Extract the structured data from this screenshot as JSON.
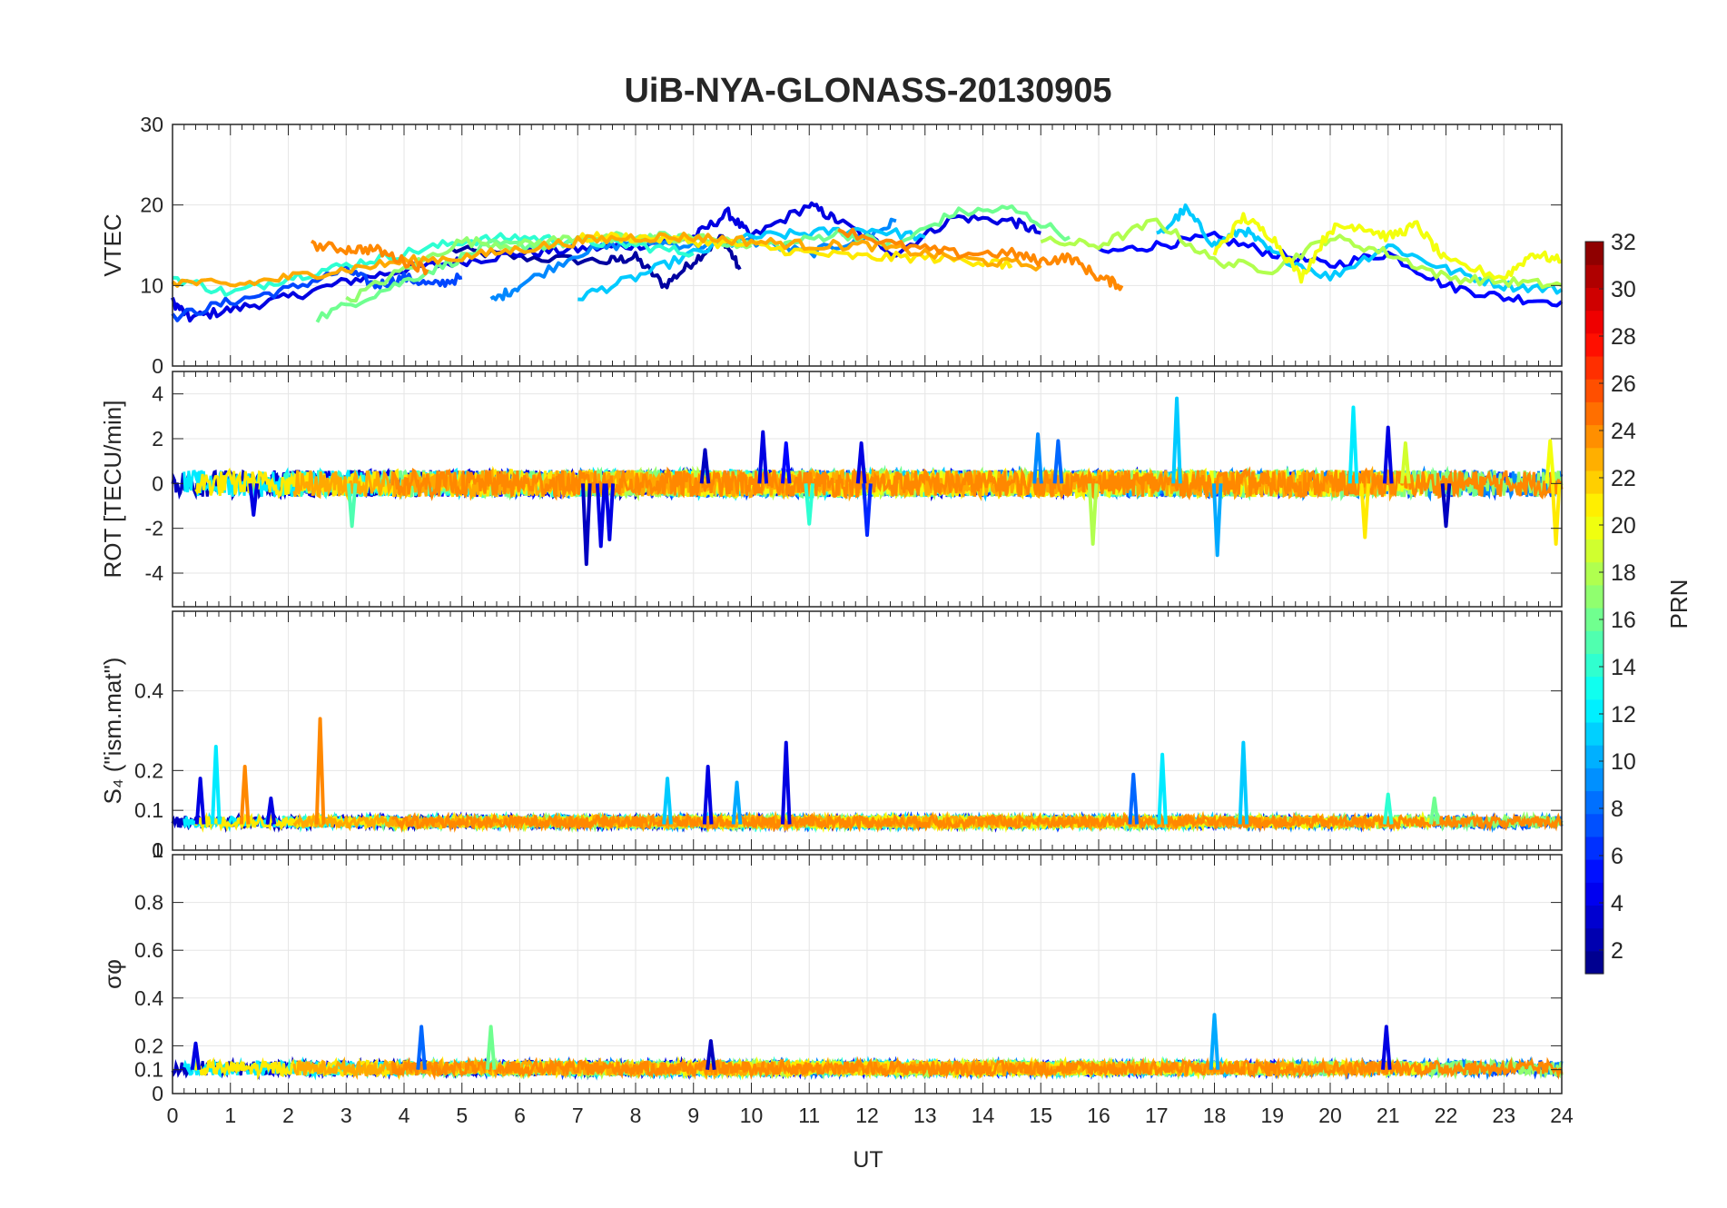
{
  "chart_data": {
    "type": "line",
    "title": "UiB-NYA-GLONASS-20130905",
    "xlabel": "UT",
    "x_range": [
      0,
      24
    ],
    "x_ticks": [
      0,
      1,
      2,
      3,
      4,
      5,
      6,
      7,
      8,
      9,
      10,
      11,
      12,
      13,
      14,
      15,
      16,
      17,
      18,
      19,
      20,
      21,
      22,
      23,
      24
    ],
    "grid": true,
    "colorbar": {
      "label": "PRN",
      "colormap": "jet",
      "range": [
        1,
        32
      ],
      "ticks": [
        2,
        4,
        6,
        8,
        10,
        12,
        14,
        16,
        18,
        20,
        22,
        24,
        26,
        28,
        30,
        32
      ]
    },
    "panels": [
      {
        "id": "vtec",
        "ylabel": "VTEC",
        "ylim": [
          0,
          30
        ],
        "yticks": [
          0,
          10,
          20,
          30
        ],
        "series": [
          {
            "prn": 2,
            "x": [
              4.8,
              6.0,
              7.5,
              8.0,
              8.5,
              9.0,
              9.5,
              9.8
            ],
            "y": [
              14.5,
              13.5,
              13.0,
              13.5,
              10.0,
              13.0,
              16.0,
              12.0
            ]
          },
          {
            "prn": 4,
            "x": [
              0.0,
              0.3,
              1.0,
              2.0,
              3.0,
              4.0,
              5.0,
              6.0,
              7.0,
              8.0,
              9.0,
              9.6,
              10.0,
              11.0,
              11.5,
              12.5,
              13.5,
              14.5,
              15.0
            ],
            "y": [
              8.0,
              6.0,
              7.0,
              8.5,
              10.5,
              12.0,
              13.0,
              14.0,
              14.5,
              15.0,
              16.0,
              19.0,
              16.0,
              20.0,
              18.0,
              14.0,
              18.5,
              18.0,
              16.5
            ]
          },
          {
            "prn": 5,
            "x": [
              16.0,
              17.0,
              18.0,
              19.0,
              20.0,
              21.0,
              22.0,
              23.0,
              24.0
            ],
            "y": [
              14.0,
              15.0,
              16.0,
              14.0,
              12.5,
              14.0,
              10.0,
              8.5,
              8.0
            ]
          },
          {
            "prn": 7,
            "x": [
              0.0,
              1.0,
              2.0,
              3.0,
              3.5,
              4.0,
              4.5,
              5.0
            ],
            "y": [
              6.0,
              8.0,
              9.5,
              12.0,
              10.0,
              11.0,
              10.0,
              11.0
            ]
          },
          {
            "prn": 9,
            "x": [
              5.5,
              6.0,
              7.0,
              8.0,
              9.0,
              10.0,
              11.0,
              12.0,
              12.5
            ],
            "y": [
              8.0,
              10.0,
              14.0,
              15.5,
              15.0,
              15.5,
              14.0,
              16.0,
              18.0
            ]
          },
          {
            "prn": 11,
            "x": [
              7.0,
              8.0,
              9.0,
              10.0,
              11.0,
              12.0,
              13.0
            ],
            "y": [
              8.5,
              11.0,
              14.0,
              16.0,
              16.5,
              17.0,
              16.0
            ]
          },
          {
            "prn": 11,
            "x": [
              17.0,
              17.5,
              18.0,
              18.5,
              19.0,
              20.0,
              21.0,
              22.0,
              23.0,
              24.0
            ],
            "y": [
              16.0,
              19.5,
              15.0,
              17.0,
              14.0,
              11.0,
              15.0,
              12.0,
              10.0,
              9.5
            ]
          },
          {
            "prn": 14,
            "x": [
              0.0,
              1.0,
              2.0,
              3.0,
              4.0,
              5.0,
              6.0,
              7.0,
              8.0,
              9.0
            ],
            "y": [
              11.0,
              9.0,
              11.0,
              12.5,
              14.0,
              15.5,
              16.0,
              15.5,
              15.0,
              14.0
            ]
          },
          {
            "prn": 16,
            "x": [
              2.5,
              3.5,
              4.5,
              5.5,
              6.5,
              7.5,
              8.5,
              9.5,
              10.5,
              11.5,
              12.5,
              13.5,
              14.5,
              15.5
            ],
            "y": [
              6.0,
              9.0,
              12.0,
              15.0,
              15.0,
              16.0,
              16.0,
              15.5,
              15.0,
              16.5,
              15.0,
              19.0,
              19.5,
              16.0
            ]
          },
          {
            "prn": 17,
            "x": [
              3.0,
              4.0,
              5.0,
              6.0,
              7.0,
              8.0,
              9.0,
              10.0
            ],
            "y": [
              8.0,
              12.0,
              15.5,
              15.0,
              16.0,
              15.5,
              16.0,
              15.0
            ]
          },
          {
            "prn": 18,
            "x": [
              15.0,
              16.0,
              17.0,
              18.0,
              19.0,
              20.0,
              21.0,
              22.0,
              23.0,
              24.0
            ],
            "y": [
              15.5,
              15.0,
              18.0,
              13.0,
              12.0,
              16.0,
              14.0,
              11.0,
              10.5,
              10.0
            ]
          },
          {
            "prn": 20,
            "x": [
              18.0,
              18.5,
              19.0,
              19.5,
              20.0,
              20.5,
              21.0,
              21.5,
              22.0,
              23.0,
              23.5,
              24.0
            ],
            "y": [
              14.0,
              18.5,
              16.0,
              11.0,
              17.0,
              17.5,
              16.0,
              17.5,
              13.0,
              11.0,
              14.0,
              13.0
            ]
          },
          {
            "prn": 21,
            "x": [
              7.0,
              8.0,
              9.0,
              10.0,
              11.0,
              12.0,
              13.0,
              14.0,
              14.5
            ],
            "y": [
              16.0,
              16.0,
              15.5,
              15.0,
              14.0,
              13.5,
              13.5,
              13.0,
              12.5
            ]
          },
          {
            "prn": 23,
            "x": [
              0.0,
              1.0,
              2.0,
              3.0,
              4.0,
              5.0,
              6.0,
              7.0,
              8.0,
              9.0,
              10.0,
              11.0,
              12.0,
              13.0,
              14.0,
              15.0
            ],
            "y": [
              10.5,
              10.0,
              11.0,
              12.0,
              13.0,
              13.5,
              14.5,
              15.5,
              16.0,
              16.0,
              15.5,
              15.0,
              15.0,
              14.0,
              13.0,
              12.5
            ]
          },
          {
            "prn": 24,
            "x": [
              2.4,
              3.0,
              3.5,
              4.0,
              4.4
            ],
            "y": [
              15.0,
              14.5,
              14.5,
              13.0,
              12.0
            ]
          },
          {
            "prn": 24,
            "x": [
              11.5,
              12.5,
              13.5,
              14.5,
              15.0,
              15.5,
              16.0,
              16.4
            ],
            "y": [
              17.0,
              15.0,
              14.0,
              14.0,
              13.0,
              13.5,
              11.0,
              10.0
            ]
          }
        ]
      },
      {
        "id": "rot",
        "ylabel": "ROT [TECU/min]",
        "ylim": [
          -5.5,
          5
        ],
        "yticks": [
          -4,
          -2,
          0,
          2,
          4
        ],
        "spikes": [
          {
            "prn": 3,
            "x": 7.15,
            "y": -3.6
          },
          {
            "prn": 4,
            "x": 7.4,
            "y": -2.8
          },
          {
            "prn": 4,
            "x": 7.55,
            "y": -2.5
          },
          {
            "prn": 3,
            "x": 9.2,
            "y": 1.5
          },
          {
            "prn": 4,
            "x": 10.2,
            "y": 2.3
          },
          {
            "prn": 5,
            "x": 10.6,
            "y": 1.8
          },
          {
            "prn": 4,
            "x": 11.9,
            "y": 1.8
          },
          {
            "prn": 6,
            "x": 12.0,
            "y": -2.3
          },
          {
            "prn": 14,
            "x": 11.0,
            "y": -1.8
          },
          {
            "prn": 9,
            "x": 14.95,
            "y": 2.2
          },
          {
            "prn": 8,
            "x": 15.3,
            "y": 1.9
          },
          {
            "prn": 18,
            "x": 15.9,
            "y": -2.7
          },
          {
            "prn": 11,
            "x": 17.35,
            "y": 3.8
          },
          {
            "prn": 10,
            "x": 18.05,
            "y": -3.2
          },
          {
            "prn": 12,
            "x": 20.4,
            "y": 3.4
          },
          {
            "prn": 4,
            "x": 21.0,
            "y": 2.5
          },
          {
            "prn": 19,
            "x": 21.3,
            "y": 1.8
          },
          {
            "prn": 21,
            "x": 20.6,
            "y": -2.4
          },
          {
            "prn": 3,
            "x": 22.0,
            "y": -1.9
          },
          {
            "prn": 21,
            "x": 23.9,
            "y": -2.7
          },
          {
            "prn": 20,
            "x": 23.8,
            "y": 1.9
          },
          {
            "prn": 15,
            "x": 3.1,
            "y": -1.9
          },
          {
            "prn": 4,
            "x": 1.4,
            "y": -1.4
          }
        ],
        "baseline_noise_amplitude": 0.6
      },
      {
        "id": "s4",
        "ylabel": "S₄ (\"ism.mat\")",
        "ylim": [
          0,
          0.6
        ],
        "yticks": [
          0,
          0.1,
          0.2,
          0.4
        ],
        "yticks_top_labels": [
          0,
          1
        ],
        "spikes": [
          {
            "prn": 4,
            "x": 0.48,
            "y": 0.18
          },
          {
            "prn": 12,
            "x": 0.75,
            "y": 0.26
          },
          {
            "prn": 24,
            "x": 1.25,
            "y": 0.21
          },
          {
            "prn": 4,
            "x": 1.7,
            "y": 0.13
          },
          {
            "prn": 24,
            "x": 2.55,
            "y": 0.33
          },
          {
            "prn": 4,
            "x": 9.25,
            "y": 0.21
          },
          {
            "prn": 11,
            "x": 8.55,
            "y": 0.18
          },
          {
            "prn": 10,
            "x": 9.75,
            "y": 0.17
          },
          {
            "prn": 4,
            "x": 10.6,
            "y": 0.27
          },
          {
            "prn": 8,
            "x": 16.6,
            "y": 0.19
          },
          {
            "prn": 12,
            "x": 17.1,
            "y": 0.24
          },
          {
            "prn": 11,
            "x": 18.5,
            "y": 0.27
          },
          {
            "prn": 14,
            "x": 21.0,
            "y": 0.14
          },
          {
            "prn": 16,
            "x": 21.8,
            "y": 0.13
          }
        ],
        "baseline_level": 0.065
      },
      {
        "id": "sigma_phi",
        "ylabel": "σφ",
        "ylim": [
          0,
          1
        ],
        "yticks": [
          0,
          0.1,
          0.2,
          0.4,
          0.6,
          0.8
        ],
        "spikes": [
          {
            "prn": 8,
            "x": 4.3,
            "y": 0.28
          },
          {
            "prn": 16,
            "x": 5.5,
            "y": 0.28
          },
          {
            "prn": 10,
            "x": 18.0,
            "y": 0.33
          },
          {
            "prn": 4,
            "x": 20.97,
            "y": 0.28
          },
          {
            "prn": 4,
            "x": 0.4,
            "y": 0.21
          },
          {
            "prn": 3,
            "x": 9.3,
            "y": 0.22
          }
        ],
        "baseline_level": 0.1
      }
    ]
  }
}
